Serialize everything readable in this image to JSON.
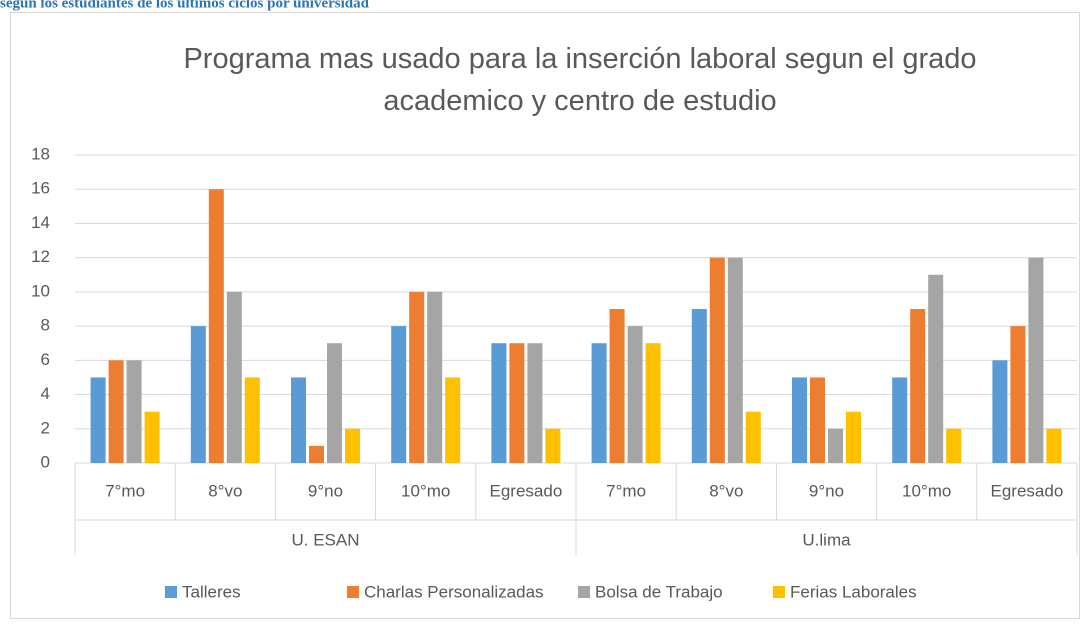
{
  "chart_data": {
    "type": "bar",
    "caption": "según los estudiantes de los últimos ciclos por universidad",
    "title": "Programa mas usado para la inserción laboral segun el grado academico y centro de estudio",
    "categories": [
      "7°mo",
      "8°vo",
      "9°no",
      "10°mo",
      "Egresado",
      "7°mo",
      "8°vo",
      "9°no",
      "10°mo",
      "Egresado"
    ],
    "category_groups": [
      "U. ESAN",
      "U.lima"
    ],
    "series": [
      {
        "name": "Talleres",
        "color": "#5b9bd5",
        "values": [
          5,
          8,
          5,
          8,
          7,
          7,
          9,
          5,
          5,
          6
        ]
      },
      {
        "name": "Charlas Personalizadas",
        "color": "#ed7d31",
        "values": [
          6,
          16,
          1,
          10,
          7,
          9,
          12,
          5,
          9,
          8
        ]
      },
      {
        "name": "Bolsa de Trabajo",
        "color": "#a5a5a5",
        "values": [
          6,
          10,
          7,
          10,
          7,
          8,
          12,
          2,
          11,
          12
        ]
      },
      {
        "name": "Ferias Laborales",
        "color": "#ffc000",
        "values": [
          3,
          5,
          2,
          5,
          2,
          7,
          3,
          3,
          2,
          2
        ]
      }
    ],
    "ylim": [
      0,
      18
    ],
    "yticks": [
      0,
      2,
      4,
      6,
      8,
      10,
      12,
      14,
      16,
      18
    ],
    "grid": true,
    "legend": "bottom"
  }
}
